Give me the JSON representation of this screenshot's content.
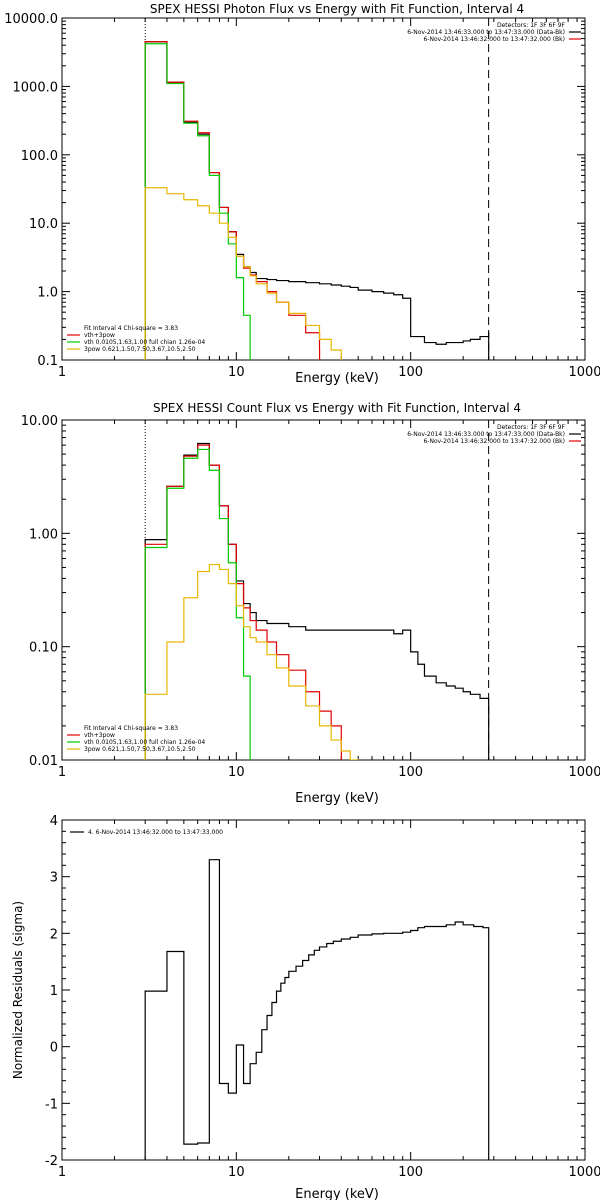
{
  "chart_data": [
    {
      "type": "line",
      "title": "SPEX HESSI Photon Flux vs Energy with Fit Function, Interval 4",
      "xlabel": "Energy (keV)",
      "ylabel": "",
      "xscale": "log",
      "yscale": "log",
      "xlim": [
        1,
        1000
      ],
      "ylim": [
        0.1,
        10000
      ],
      "xticks": [
        "1",
        "10",
        "100",
        "1000"
      ],
      "yticks": [
        "0.1",
        "1.0",
        "10.0",
        "100.0",
        "1000.0",
        "10000.0"
      ],
      "yticks_values": [
        0.1,
        1,
        10,
        100,
        1000,
        10000
      ],
      "vlines": [
        {
          "x": 3,
          "style": "dotted"
        },
        {
          "x": 280,
          "style": "dashed"
        }
      ],
      "header_lines": [
        "Detectors: 1F 3F 6F 9F",
        "6-Nov-2014 13:46:33.000 to 13:47:33.000 (Data-Bk)",
        "6-Nov-2014 13:46:32.000 to 13:47:32.000 (Bk)"
      ],
      "header_colors": [
        "#ffffff",
        "#000000",
        "#e00000"
      ],
      "fit_lines": [
        "Fit Interval 4   Chi-square = 3.83",
        "vth+3pow",
        "vth 0.0105,1.63,1.00  full chian 1.26e-04",
        "3pow 0.621,1.50,7.50,3.67,10.5,2.50"
      ],
      "fit_colors": [
        "#ffffff",
        "#e00000",
        "#00cc00",
        "#e8b800"
      ],
      "series": [
        {
          "name": "6-Nov-2014 13:46:33.000 to 13:47:33.000 (Data-Bk)",
          "color": "#000000",
          "step": true,
          "x": [
            3,
            4,
            5,
            6,
            7,
            8,
            9,
            10,
            11,
            12,
            13,
            15,
            17,
            20,
            25,
            30,
            35,
            40,
            45,
            50,
            60,
            70,
            80,
            90,
            100,
            120,
            140,
            160,
            180,
            200,
            220,
            250,
            280
          ],
          "y": [
            4500,
            1150,
            300,
            200,
            55,
            17,
            7.5,
            3.5,
            2.3,
            1.9,
            1.55,
            1.5,
            1.45,
            1.4,
            1.35,
            1.3,
            1.25,
            1.2,
            1.15,
            1.05,
            1.0,
            0.95,
            0.9,
            0.8,
            0.22,
            0.18,
            0.17,
            0.18,
            0.18,
            0.19,
            0.2,
            0.22,
            0.25
          ]
        },
        {
          "name": "vth+3pow",
          "color": "#e00000",
          "step": true,
          "x": [
            3,
            4,
            5,
            6,
            7,
            8,
            9,
            10,
            11,
            12,
            13,
            15,
            17,
            20,
            25,
            30
          ],
          "y": [
            4500,
            1150,
            310,
            210,
            55,
            17,
            7.5,
            3.3,
            2.2,
            1.75,
            1.4,
            1.0,
            0.7,
            0.45,
            0.25,
            0.15
          ]
        },
        {
          "name": "vth",
          "color": "#00cc00",
          "step": true,
          "x": [
            3,
            4,
            5,
            6,
            7,
            8,
            9,
            10,
            11,
            12
          ],
          "y": [
            4200,
            1100,
            290,
            190,
            50,
            14,
            5.0,
            1.6,
            0.45,
            0.1
          ]
        },
        {
          "name": "3pow",
          "color": "#e8b800",
          "step": true,
          "x": [
            3,
            4,
            5,
            6,
            7,
            8,
            9,
            10,
            11,
            12,
            13,
            15,
            17,
            20,
            25,
            30,
            35,
            40
          ],
          "y": [
            33,
            27,
            22,
            18,
            14,
            10,
            6.2,
            3.3,
            2.3,
            1.7,
            1.3,
            0.95,
            0.7,
            0.48,
            0.32,
            0.2,
            0.14,
            0.1
          ]
        }
      ]
    },
    {
      "type": "line",
      "title": "SPEX HESSI Count Flux vs Energy with Fit Function, Interval 4",
      "xlabel": "Energy (keV)",
      "ylabel": "",
      "xscale": "log",
      "yscale": "log",
      "xlim": [
        1,
        1000
      ],
      "ylim": [
        0.01,
        10
      ],
      "xticks": [
        "1",
        "10",
        "100",
        "1000"
      ],
      "yticks": [
        "0.01",
        "0.10",
        "1.00",
        "10.00"
      ],
      "yticks_values": [
        0.01,
        0.1,
        1,
        10
      ],
      "vlines": [
        {
          "x": 3,
          "style": "dotted"
        },
        {
          "x": 280,
          "style": "dashed"
        }
      ],
      "header_lines": [
        "Detectors: 1F 3F 6F 9F",
        "6-Nov-2014 13:46:33.000 to 13:47:33.000 (Data-Bk)",
        "6-Nov-2014 13:46:32.000 to 13:47:32.000 (Bk)"
      ],
      "header_colors": [
        "#ffffff",
        "#000000",
        "#e00000"
      ],
      "fit_lines": [
        "Fit Interval 4   Chi-square = 3.83",
        "vth+3pow",
        "vth 0.0105,1.63,1.00  full chian 1.26e-04",
        "3pow 0.621,1.50,7.50,3.67,10.5,2.50"
      ],
      "fit_colors": [
        "#ffffff",
        "#e00000",
        "#00cc00",
        "#e8b800"
      ],
      "series": [
        {
          "name": "6-Nov-2014 13:46:33.000 to 13:47:33.000 (Data-Bk)",
          "color": "#000000",
          "step": true,
          "x": [
            3,
            4,
            5,
            6,
            7,
            8,
            9,
            10,
            11,
            12,
            13,
            15,
            17,
            20,
            25,
            30,
            35,
            40,
            50,
            60,
            70,
            80,
            90,
            100,
            110,
            120,
            140,
            160,
            180,
            200,
            220,
            250,
            280
          ],
          "y": [
            0.88,
            2.6,
            4.9,
            6.2,
            4.0,
            1.75,
            0.8,
            0.38,
            0.24,
            0.2,
            0.17,
            0.16,
            0.16,
            0.15,
            0.14,
            0.14,
            0.14,
            0.14,
            0.14,
            0.14,
            0.14,
            0.13,
            0.14,
            0.09,
            0.07,
            0.055,
            0.048,
            0.045,
            0.043,
            0.04,
            0.038,
            0.035,
            0.032
          ]
        },
        {
          "name": "vth+3pow",
          "color": "#e00000",
          "step": true,
          "x": [
            3,
            4,
            5,
            6,
            7,
            8,
            9,
            10,
            11,
            12,
            13,
            15,
            17,
            20,
            25,
            30,
            35,
            40
          ],
          "y": [
            0.8,
            2.6,
            4.8,
            6.0,
            4.0,
            1.75,
            0.8,
            0.36,
            0.22,
            0.17,
            0.14,
            0.11,
            0.085,
            0.062,
            0.04,
            0.027,
            0.02,
            0.014
          ]
        },
        {
          "name": "vth",
          "color": "#00cc00",
          "step": true,
          "x": [
            3,
            4,
            5,
            6,
            7,
            8,
            9,
            10,
            11,
            12
          ],
          "y": [
            0.75,
            2.5,
            4.6,
            5.5,
            3.6,
            1.35,
            0.55,
            0.18,
            0.055,
            0.01
          ]
        },
        {
          "name": "3pow",
          "color": "#e8b800",
          "step": true,
          "x": [
            3,
            4,
            5,
            6,
            7,
            8,
            9,
            10,
            11,
            12,
            13,
            15,
            17,
            20,
            25,
            30,
            35,
            40,
            45,
            50
          ],
          "y": [
            0.038,
            0.11,
            0.27,
            0.46,
            0.53,
            0.48,
            0.36,
            0.23,
            0.15,
            0.12,
            0.11,
            0.085,
            0.065,
            0.045,
            0.03,
            0.02,
            0.015,
            0.012,
            0.01,
            0.01
          ]
        }
      ]
    },
    {
      "type": "line",
      "title": "",
      "xlabel": "Energy (keV)",
      "ylabel": "Normalized Residuals (sigma)",
      "xscale": "log",
      "yscale": "linear",
      "xlim": [
        1,
        1000
      ],
      "ylim": [
        -2,
        4
      ],
      "xticks": [
        "1",
        "10",
        "100",
        "1000"
      ],
      "yticks": [
        "-2",
        "-1",
        "0",
        "1",
        "2",
        "3",
        "4"
      ],
      "yticks_values": [
        -2,
        -1,
        0,
        1,
        2,
        3,
        4
      ],
      "legend": "4.  6-Nov-2014 13:46:32.000 to 13:47:33.000",
      "series": [
        {
          "name": "4.  6-Nov-2014 13:46:32.000 to 13:47:33.000",
          "color": "#000000",
          "step": true,
          "x": [
            3,
            4,
            5,
            6,
            7,
            8,
            9,
            10,
            11,
            12,
            13,
            14,
            15,
            16,
            17,
            18,
            19,
            20,
            22,
            24,
            26,
            28,
            30,
            33,
            36,
            40,
            45,
            50,
            60,
            70,
            80,
            90,
            100,
            110,
            120,
            140,
            160,
            180,
            200,
            230,
            260,
            280
          ],
          "y": [
            0.98,
            1.68,
            -1.72,
            -1.7,
            3.3,
            -0.65,
            -0.82,
            0.03,
            -0.65,
            -0.3,
            -0.1,
            0.3,
            0.55,
            0.78,
            0.98,
            1.12,
            1.22,
            1.33,
            1.42,
            1.52,
            1.62,
            1.7,
            1.76,
            1.82,
            1.86,
            1.9,
            1.93,
            1.97,
            1.99,
            2.0,
            2.0,
            2.02,
            2.05,
            2.1,
            2.12,
            2.12,
            2.15,
            2.2,
            2.15,
            2.12,
            2.1,
            2.1
          ]
        }
      ]
    }
  ]
}
